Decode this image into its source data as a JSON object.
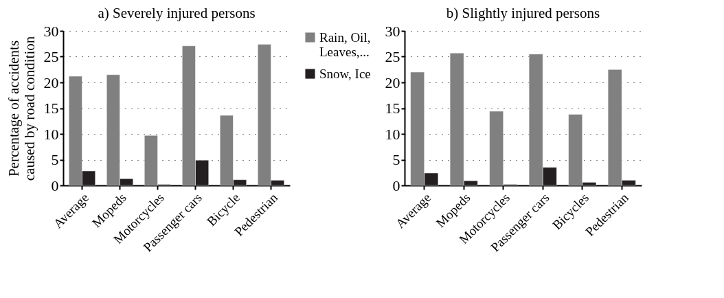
{
  "chart_data": [
    {
      "type": "bar",
      "title": "a) Severely injured persons",
      "ylabel": "Percentage of accidents caused by road condition",
      "categories": [
        "Average",
        "Mopeds",
        "Motorcycles",
        "Passenger cars",
        "Bicycle",
        "Pedestrian"
      ],
      "series": [
        {
          "name": "Rain, Oil, Leaves,...",
          "color": "#808080",
          "values": [
            21.2,
            21.5,
            9.7,
            27.1,
            13.6,
            27.4
          ]
        },
        {
          "name": "Snow, Ice",
          "color": "#231f20",
          "values": [
            2.8,
            1.3,
            0.2,
            4.9,
            1.1,
            1.0
          ]
        }
      ],
      "ylim": [
        0,
        30
      ],
      "yticks": [
        0,
        5,
        10,
        15,
        20,
        25,
        30
      ],
      "grid": "y",
      "legend": "right"
    },
    {
      "type": "bar",
      "title": "b) Slightly injured persons",
      "categories": [
        "Average",
        "Mopeds",
        "Motorcycles",
        "Passenger cars",
        "Bicycles",
        "Pedestrian"
      ],
      "series": [
        {
          "color": "#808080",
          "values": [
            22.0,
            25.7,
            14.4,
            25.5,
            13.8,
            22.5
          ]
        },
        {
          "color": "#231f20",
          "values": [
            2.4,
            0.9,
            0.2,
            3.5,
            0.6,
            1.0
          ]
        }
      ],
      "ylim": [
        0,
        30
      ],
      "yticks": [
        0,
        5,
        10,
        15,
        20,
        25,
        30
      ],
      "grid": "y"
    }
  ]
}
